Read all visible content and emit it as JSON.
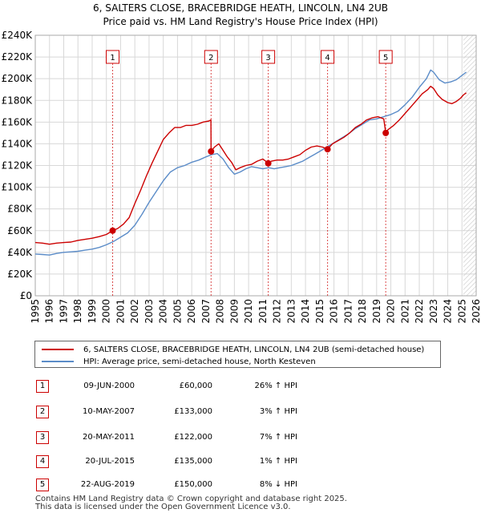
{
  "chart_data": {
    "type": "line",
    "title": "6, SALTERS CLOSE, BRACEBRIDGE HEATH, LINCOLN, LN4 2UB",
    "subtitle": "Price paid vs. HM Land Registry's House Price Index (HPI)",
    "xlabel": "",
    "ylabel": "",
    "xlim": [
      1995,
      2026
    ],
    "ylim": [
      0,
      240000
    ],
    "x_ticks": [
      "1995",
      "1996",
      "1997",
      "1998",
      "1999",
      "2000",
      "2001",
      "2002",
      "2003",
      "2004",
      "2005",
      "2006",
      "2007",
      "2008",
      "2009",
      "2010",
      "2011",
      "2012",
      "2013",
      "2014",
      "2015",
      "2016",
      "2017",
      "2018",
      "2019",
      "2020",
      "2021",
      "2022",
      "2023",
      "2024",
      "2025",
      "2026"
    ],
    "y_ticks": [
      {
        "value": 0,
        "label": "£0"
      },
      {
        "value": 20000,
        "label": "£20K"
      },
      {
        "value": 40000,
        "label": "£40K"
      },
      {
        "value": 60000,
        "label": "£60K"
      },
      {
        "value": 80000,
        "label": "£80K"
      },
      {
        "value": 100000,
        "label": "£100K"
      },
      {
        "value": 120000,
        "label": "£120K"
      },
      {
        "value": 140000,
        "label": "£140K"
      },
      {
        "value": 160000,
        "label": "£160K"
      },
      {
        "value": 180000,
        "label": "£180K"
      },
      {
        "value": 200000,
        "label": "£200K"
      },
      {
        "value": 220000,
        "label": "£220K"
      },
      {
        "value": 240000,
        "label": "£240K"
      }
    ],
    "grid": true,
    "series": [
      {
        "name": "6, SALTERS CLOSE, BRACEBRIDGE HEATH, LINCOLN, LN4 2UB (semi-detached house)",
        "color": "#cc0000",
        "x": [
          1995.0,
          1995.5,
          1996.0,
          1996.5,
          1997.0,
          1997.5,
          1998.0,
          1998.5,
          1999.0,
          1999.5,
          2000.0,
          2000.44,
          2000.8,
          2001.2,
          2001.6,
          2002.0,
          2002.4,
          2002.8,
          2003.2,
          2003.6,
          2004.0,
          2004.4,
          2004.8,
          2005.2,
          2005.6,
          2006.0,
          2006.4,
          2006.8,
          2007.2,
          2007.35,
          2007.36,
          2007.6,
          2007.9,
          2008.2,
          2008.5,
          2008.8,
          2009.1,
          2009.4,
          2009.8,
          2010.2,
          2010.6,
          2011.0,
          2011.2,
          2011.38,
          2011.6,
          2012.0,
          2012.4,
          2012.8,
          2013.2,
          2013.6,
          2014.0,
          2014.4,
          2014.8,
          2015.2,
          2015.55,
          2015.9,
          2016.3,
          2016.7,
          2017.1,
          2017.5,
          2017.9,
          2018.3,
          2018.7,
          2019.1,
          2019.5,
          2019.64,
          2019.8,
          2020.2,
          2020.6,
          2021.0,
          2021.4,
          2021.8,
          2022.2,
          2022.6,
          2022.8,
          2023.0,
          2023.3,
          2023.6,
          2024.0,
          2024.3,
          2024.6,
          2024.9,
          2025.1,
          2025.3
        ],
        "values": [
          49000,
          48500,
          47500,
          48500,
          49000,
          49500,
          51000,
          52000,
          53000,
          54500,
          56500,
          60000,
          62000,
          66000,
          72000,
          85000,
          97000,
          110000,
          122000,
          133000,
          144000,
          150000,
          155000,
          155000,
          157000,
          157000,
          158000,
          160000,
          161000,
          162000,
          133000,
          137000,
          140000,
          134000,
          128000,
          123000,
          116000,
          118000,
          120000,
          121000,
          124000,
          126000,
          124000,
          122000,
          124000,
          125000,
          125000,
          126000,
          128000,
          130000,
          134000,
          137000,
          138000,
          137000,
          135000,
          140000,
          143000,
          146000,
          150000,
          155000,
          158000,
          162000,
          164000,
          165000,
          163000,
          150000,
          153000,
          157000,
          162000,
          168000,
          174000,
          180000,
          186000,
          190000,
          193000,
          191000,
          185000,
          181000,
          178000,
          177000,
          179000,
          182000,
          185000,
          187000
        ]
      },
      {
        "name": "HPI: Average price, semi-detached house, North Kesteven",
        "color": "#5b8cc8",
        "x": [
          1995.0,
          1995.5,
          1996.0,
          1996.5,
          1997.0,
          1997.5,
          1998.0,
          1998.5,
          1999.0,
          1999.5,
          2000.0,
          2000.5,
          2001.0,
          2001.5,
          2002.0,
          2002.5,
          2003.0,
          2003.5,
          2004.0,
          2004.5,
          2005.0,
          2005.5,
          2006.0,
          2006.5,
          2007.0,
          2007.4,
          2007.8,
          2008.2,
          2008.6,
          2009.0,
          2009.4,
          2009.8,
          2010.2,
          2010.6,
          2011.0,
          2011.4,
          2011.8,
          2012.2,
          2012.6,
          2013.0,
          2013.4,
          2013.8,
          2014.2,
          2014.6,
          2015.0,
          2015.5,
          2016.0,
          2016.5,
          2017.0,
          2017.5,
          2018.0,
          2018.5,
          2019.0,
          2019.5,
          2020.0,
          2020.5,
          2021.0,
          2021.5,
          2022.0,
          2022.5,
          2022.8,
          2023.0,
          2023.4,
          2023.8,
          2024.2,
          2024.6,
          2025.0,
          2025.3
        ],
        "values": [
          38500,
          38000,
          37500,
          39000,
          40000,
          40500,
          41000,
          42000,
          43000,
          44500,
          47000,
          50000,
          54000,
          58000,
          65000,
          75000,
          86000,
          96000,
          106000,
          114000,
          118000,
          120000,
          123000,
          125000,
          128000,
          130000,
          131000,
          126000,
          118000,
          112000,
          114000,
          117000,
          119000,
          118000,
          117000,
          118000,
          117000,
          118000,
          119000,
          120000,
          122000,
          124000,
          127000,
          130000,
          133000,
          137000,
          141000,
          145000,
          149000,
          154000,
          158000,
          162000,
          163000,
          165000,
          167000,
          170000,
          176000,
          183000,
          192000,
          200000,
          208000,
          206000,
          199000,
          196000,
          197000,
          199000,
          203000,
          206000
        ]
      }
    ],
    "sale_markers": [
      {
        "label": "1",
        "x": 2000.44,
        "value": 60000
      },
      {
        "label": "2",
        "x": 2007.36,
        "value": 133000
      },
      {
        "label": "3",
        "x": 2011.38,
        "value": 122000
      },
      {
        "label": "4",
        "x": 2015.55,
        "value": 135000
      },
      {
        "label": "5",
        "x": 2019.64,
        "value": 150000
      }
    ]
  },
  "colors": {
    "property": "#cc0000",
    "hpi": "#5b8cc8",
    "grid": "#d8d8d8",
    "future_hatch": "#c8c8c8"
  },
  "legend": {
    "property_label": "6, SALTERS CLOSE, BRACEBRIDGE HEATH, LINCOLN, LN4 2UB (semi-detached house)",
    "hpi_label": "HPI: Average price, semi-detached house, North Kesteven"
  },
  "sales": [
    {
      "num": "1",
      "date": "09-JUN-2000",
      "price": "£60,000",
      "hpi": "26% ↑ HPI"
    },
    {
      "num": "2",
      "date": "10-MAY-2007",
      "price": "£133,000",
      "hpi": "3% ↑ HPI"
    },
    {
      "num": "3",
      "date": "20-MAY-2011",
      "price": "£122,000",
      "hpi": "7% ↑ HPI"
    },
    {
      "num": "4",
      "date": "20-JUL-2015",
      "price": "£135,000",
      "hpi": "1% ↑ HPI"
    },
    {
      "num": "5",
      "date": "22-AUG-2019",
      "price": "£150,000",
      "hpi": "8% ↓ HPI"
    }
  ],
  "footer": {
    "line1": "Contains HM Land Registry data © Crown copyright and database right 2025.",
    "line2": "This data is licensed under the Open Government Licence v3.0."
  }
}
